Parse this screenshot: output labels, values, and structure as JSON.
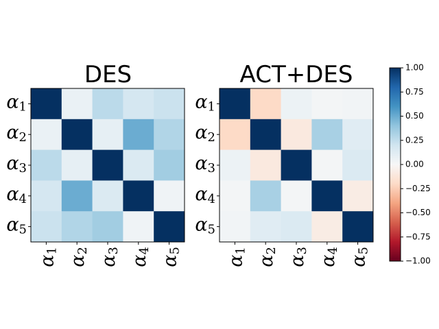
{
  "chart_data": [
    {
      "type": "heatmap",
      "title": "DES",
      "x_ticks": [
        "α1",
        "α2",
        "α3",
        "α4",
        "α5"
      ],
      "y_ticks": [
        "α1",
        "α2",
        "α3",
        "α4",
        "α5"
      ],
      "matrix": [
        [
          1.0,
          0.07,
          0.27,
          0.18,
          0.22
        ],
        [
          0.07,
          1.0,
          0.09,
          0.5,
          0.3
        ],
        [
          0.27,
          0.09,
          1.0,
          0.15,
          0.35
        ],
        [
          0.18,
          0.5,
          0.15,
          1.0,
          0.04
        ],
        [
          0.22,
          0.3,
          0.35,
          0.04,
          1.0
        ]
      ]
    },
    {
      "type": "heatmap",
      "title": "ACT+DES",
      "x_ticks": [
        "α1",
        "α2",
        "α3",
        "α4",
        "α5"
      ],
      "y_ticks": [
        "α1",
        "α2",
        "α3",
        "α4",
        "α5"
      ],
      "matrix": [
        [
          1.0,
          -0.2,
          0.06,
          0.02,
          0.03
        ],
        [
          -0.2,
          1.0,
          -0.1,
          0.33,
          0.12
        ],
        [
          0.06,
          -0.1,
          1.0,
          0.02,
          0.15
        ],
        [
          0.02,
          0.33,
          0.02,
          1.0,
          -0.08
        ],
        [
          0.03,
          0.12,
          0.15,
          -0.08,
          1.0
        ]
      ]
    }
  ],
  "colorbar": {
    "colormap": "RdBu",
    "range": [
      -1.0,
      1.0
    ],
    "ticks": [
      "1.00",
      "0.75",
      "0.50",
      "0.25",
      "0.00",
      "−0.25",
      "−0.50",
      "−0.75",
      "−1.00"
    ]
  }
}
